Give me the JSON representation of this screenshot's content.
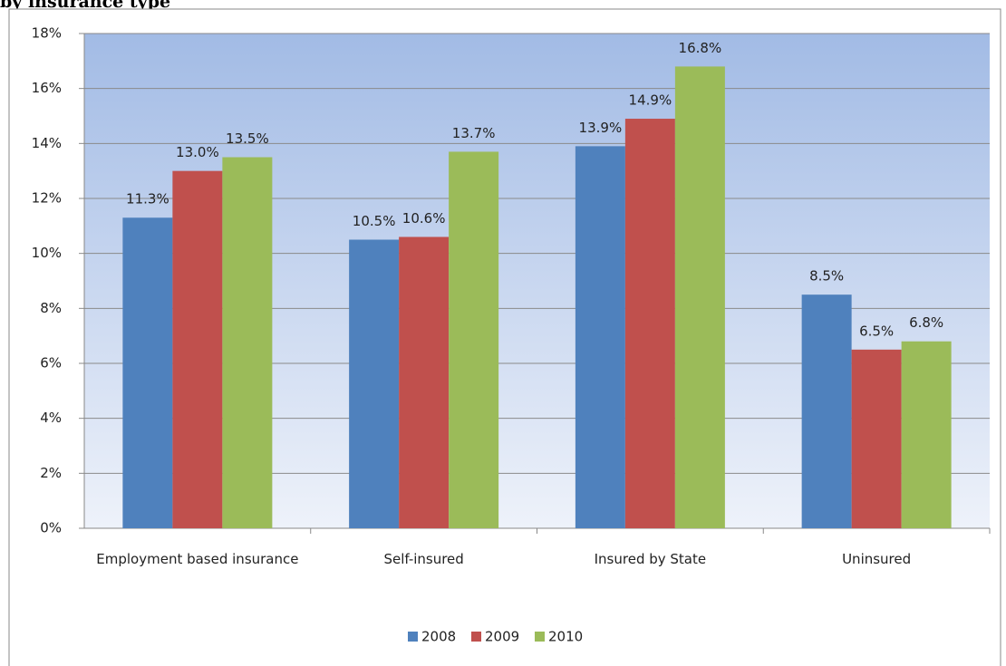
{
  "chart_data": {
    "type": "bar",
    "title": "by insurance type",
    "categories": [
      "Employment based insurance",
      "Self-insured",
      "Insured by State",
      "Uninsured"
    ],
    "series": [
      {
        "name": "2008",
        "color": "#4f81bd",
        "values": [
          11.3,
          10.5,
          13.9,
          8.5
        ],
        "value_labels": [
          "11.3%",
          "10.5%",
          "13.9%",
          "8.5%"
        ]
      },
      {
        "name": "2009",
        "color": "#c0504d",
        "values": [
          13.0,
          10.6,
          14.9,
          6.5
        ],
        "value_labels": [
          "13.0%",
          "10.6%",
          "14.9%",
          "6.5%"
        ]
      },
      {
        "name": "2010",
        "color": "#9bbb59",
        "values": [
          13.5,
          13.7,
          16.8,
          6.8
        ],
        "value_labels": [
          "13.5%",
          "13.7%",
          "16.8%",
          "6.8%"
        ]
      }
    ],
    "ylim": [
      0,
      18
    ],
    "yticks": [
      {
        "value": 0,
        "label": "0%"
      },
      {
        "value": 2,
        "label": "2%"
      },
      {
        "value": 4,
        "label": "4%"
      },
      {
        "value": 6,
        "label": "6%"
      },
      {
        "value": 8,
        "label": "8%"
      },
      {
        "value": 10,
        "label": "10%"
      },
      {
        "value": 12,
        "label": "12%"
      },
      {
        "value": 14,
        "label": "14%"
      },
      {
        "value": 16,
        "label": "16%"
      },
      {
        "value": 18,
        "label": "18%"
      }
    ],
    "grid": true,
    "legend": "bottom"
  }
}
